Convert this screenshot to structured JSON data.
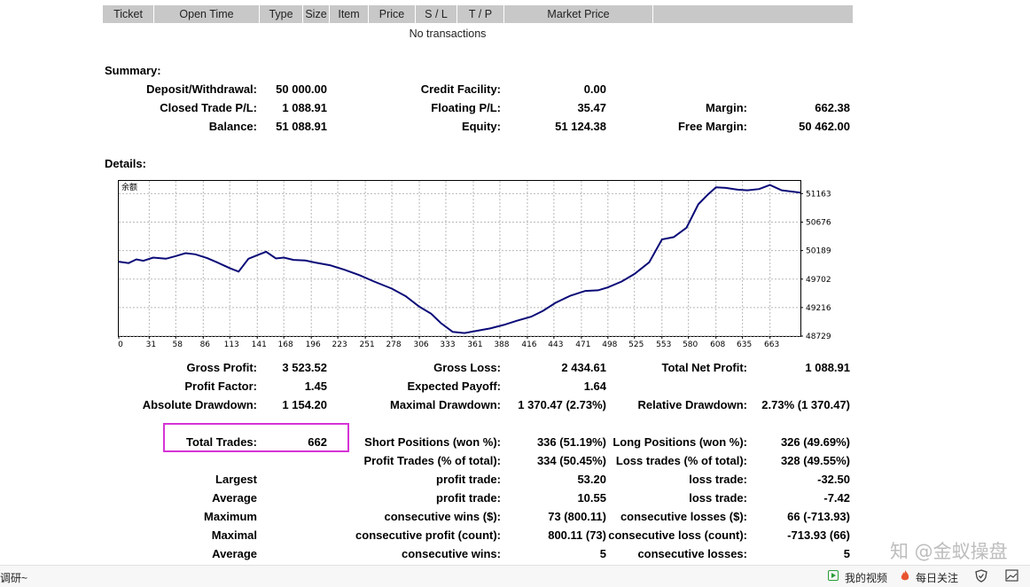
{
  "transactions": {
    "columns": [
      "Ticket",
      "Open Time",
      "Type",
      "Size",
      "Item",
      "Price",
      "S / L",
      "T / P",
      "Market Price"
    ],
    "empty_text": "No transactions"
  },
  "summary": {
    "title": "Summary:",
    "deposit_label": "Deposit/Withdrawal:",
    "deposit_value": "50 000.00",
    "credit_label": "Credit Facility:",
    "credit_value": "0.00",
    "closed_pl_label": "Closed Trade P/L:",
    "closed_pl_value": "1 088.91",
    "floating_pl_label": "Floating P/L:",
    "floating_pl_value": "35.47",
    "margin_label": "Margin:",
    "margin_value": "662.38",
    "balance_label": "Balance:",
    "balance_value": "51 088.91",
    "equity_label": "Equity:",
    "equity_value": "51 124.38",
    "free_margin_label": "Free Margin:",
    "free_margin_value": "50 462.00"
  },
  "details": {
    "title": "Details:"
  },
  "chart_data": {
    "type": "line",
    "title": "余额",
    "x_ticks": [
      0,
      31,
      58,
      86,
      113,
      141,
      168,
      196,
      223,
      251,
      278,
      306,
      333,
      361,
      388,
      416,
      443,
      471,
      498,
      525,
      553,
      580,
      608,
      635,
      663
    ],
    "y_ticks": [
      51163,
      50676,
      50189,
      49702,
      49216,
      48729
    ],
    "xlim": [
      0,
      694
    ],
    "ylim": [
      48729,
      51380
    ],
    "grid": true,
    "line_color": "#0a0a78",
    "series": [
      {
        "x": [
          0,
          10,
          18,
          25,
          35,
          48,
          58,
          68,
          78,
          90,
          100,
          113,
          122,
          132,
          141,
          150,
          160,
          168,
          178,
          190,
          200,
          215,
          230,
          245,
          260,
          278,
          292,
          306,
          318,
          328,
          340,
          352,
          365,
          378,
          392,
          405,
          420,
          432,
          445,
          460,
          475,
          488,
          498,
          512,
          525,
          540,
          553,
          565,
          578,
          590,
          600,
          608,
          618,
          630,
          640,
          652,
          663,
          675,
          694
        ],
        "y": [
          50000,
          49975,
          50040,
          50015,
          50070,
          50050,
          50095,
          50145,
          50125,
          50060,
          49990,
          49890,
          49830,
          50050,
          50110,
          50170,
          50055,
          50070,
          50030,
          50020,
          49985,
          49940,
          49860,
          49770,
          49660,
          49540,
          49410,
          49230,
          49110,
          48950,
          48800,
          48780,
          48820,
          48860,
          48920,
          48990,
          49060,
          49160,
          49300,
          49420,
          49500,
          49510,
          49560,
          49660,
          49790,
          49990,
          50380,
          50420,
          50580,
          50980,
          51150,
          51270,
          51260,
          51230,
          51220,
          51240,
          51310,
          51220,
          51180
        ]
      }
    ]
  },
  "stats": {
    "gross_profit_label": "Gross Profit:",
    "gross_profit_value": "3 523.52",
    "gross_loss_label": "Gross Loss:",
    "gross_loss_value": "2 434.61",
    "net_profit_label": "Total Net Profit:",
    "net_profit_value": "1 088.91",
    "profit_factor_label": "Profit Factor:",
    "profit_factor_value": "1.45",
    "expected_payoff_label": "Expected Payoff:",
    "expected_payoff_value": "1.64",
    "abs_dd_label": "Absolute Drawdown:",
    "abs_dd_value": "1 154.20",
    "max_dd_label": "Maximal Drawdown:",
    "max_dd_value": "1 370.47 (2.73%)",
    "rel_dd_label": "Relative Drawdown:",
    "rel_dd_value": "2.73% (1 370.47)",
    "total_trades_label": "Total Trades:",
    "total_trades_value": "662",
    "short_label": "Short Positions (won %):",
    "short_value": "336 (51.19%)",
    "long_label": "Long Positions (won %):",
    "long_value": "326 (49.69%)",
    "profit_trades_label": "Profit Trades (% of total):",
    "profit_trades_value": "334 (50.45%)",
    "loss_trades_label": "Loss trades (% of total):",
    "loss_trades_value": "328 (49.55%)",
    "largest_label": "Largest",
    "largest_profit_label": "profit trade:",
    "largest_profit_value": "53.20",
    "largest_loss_label": "loss trade:",
    "largest_loss_value": "-32.50",
    "average_label": "Average",
    "avg_profit_label": "profit trade:",
    "avg_profit_value": "10.55",
    "avg_loss_label": "loss trade:",
    "avg_loss_value": "-7.42",
    "maximum_label": "Maximum",
    "max_cons_wins_label": "consecutive wins ($):",
    "max_cons_wins_value": "73 (800.11)",
    "max_cons_losses_label": "consecutive losses ($):",
    "max_cons_losses_value": "66 (-713.93)",
    "maximal_label": "Maximal",
    "maximal_profit_label": "consecutive profit (count):",
    "maximal_profit_value": "800.11 (73)",
    "maximal_loss_label": "consecutive loss (count):",
    "maximal_loss_value": "-713.93 (66)",
    "average2_label": "Average",
    "avg_cons_wins_label": "consecutive wins:",
    "avg_cons_wins_value": "5",
    "avg_cons_losses_label": "consecutive losses:",
    "avg_cons_losses_value": "5"
  },
  "bottom_bar": {
    "left_text": "调研~",
    "my_videos": "我的视频",
    "daily_follow": "每日关注"
  },
  "watermark": "知 @金蚁操盘"
}
